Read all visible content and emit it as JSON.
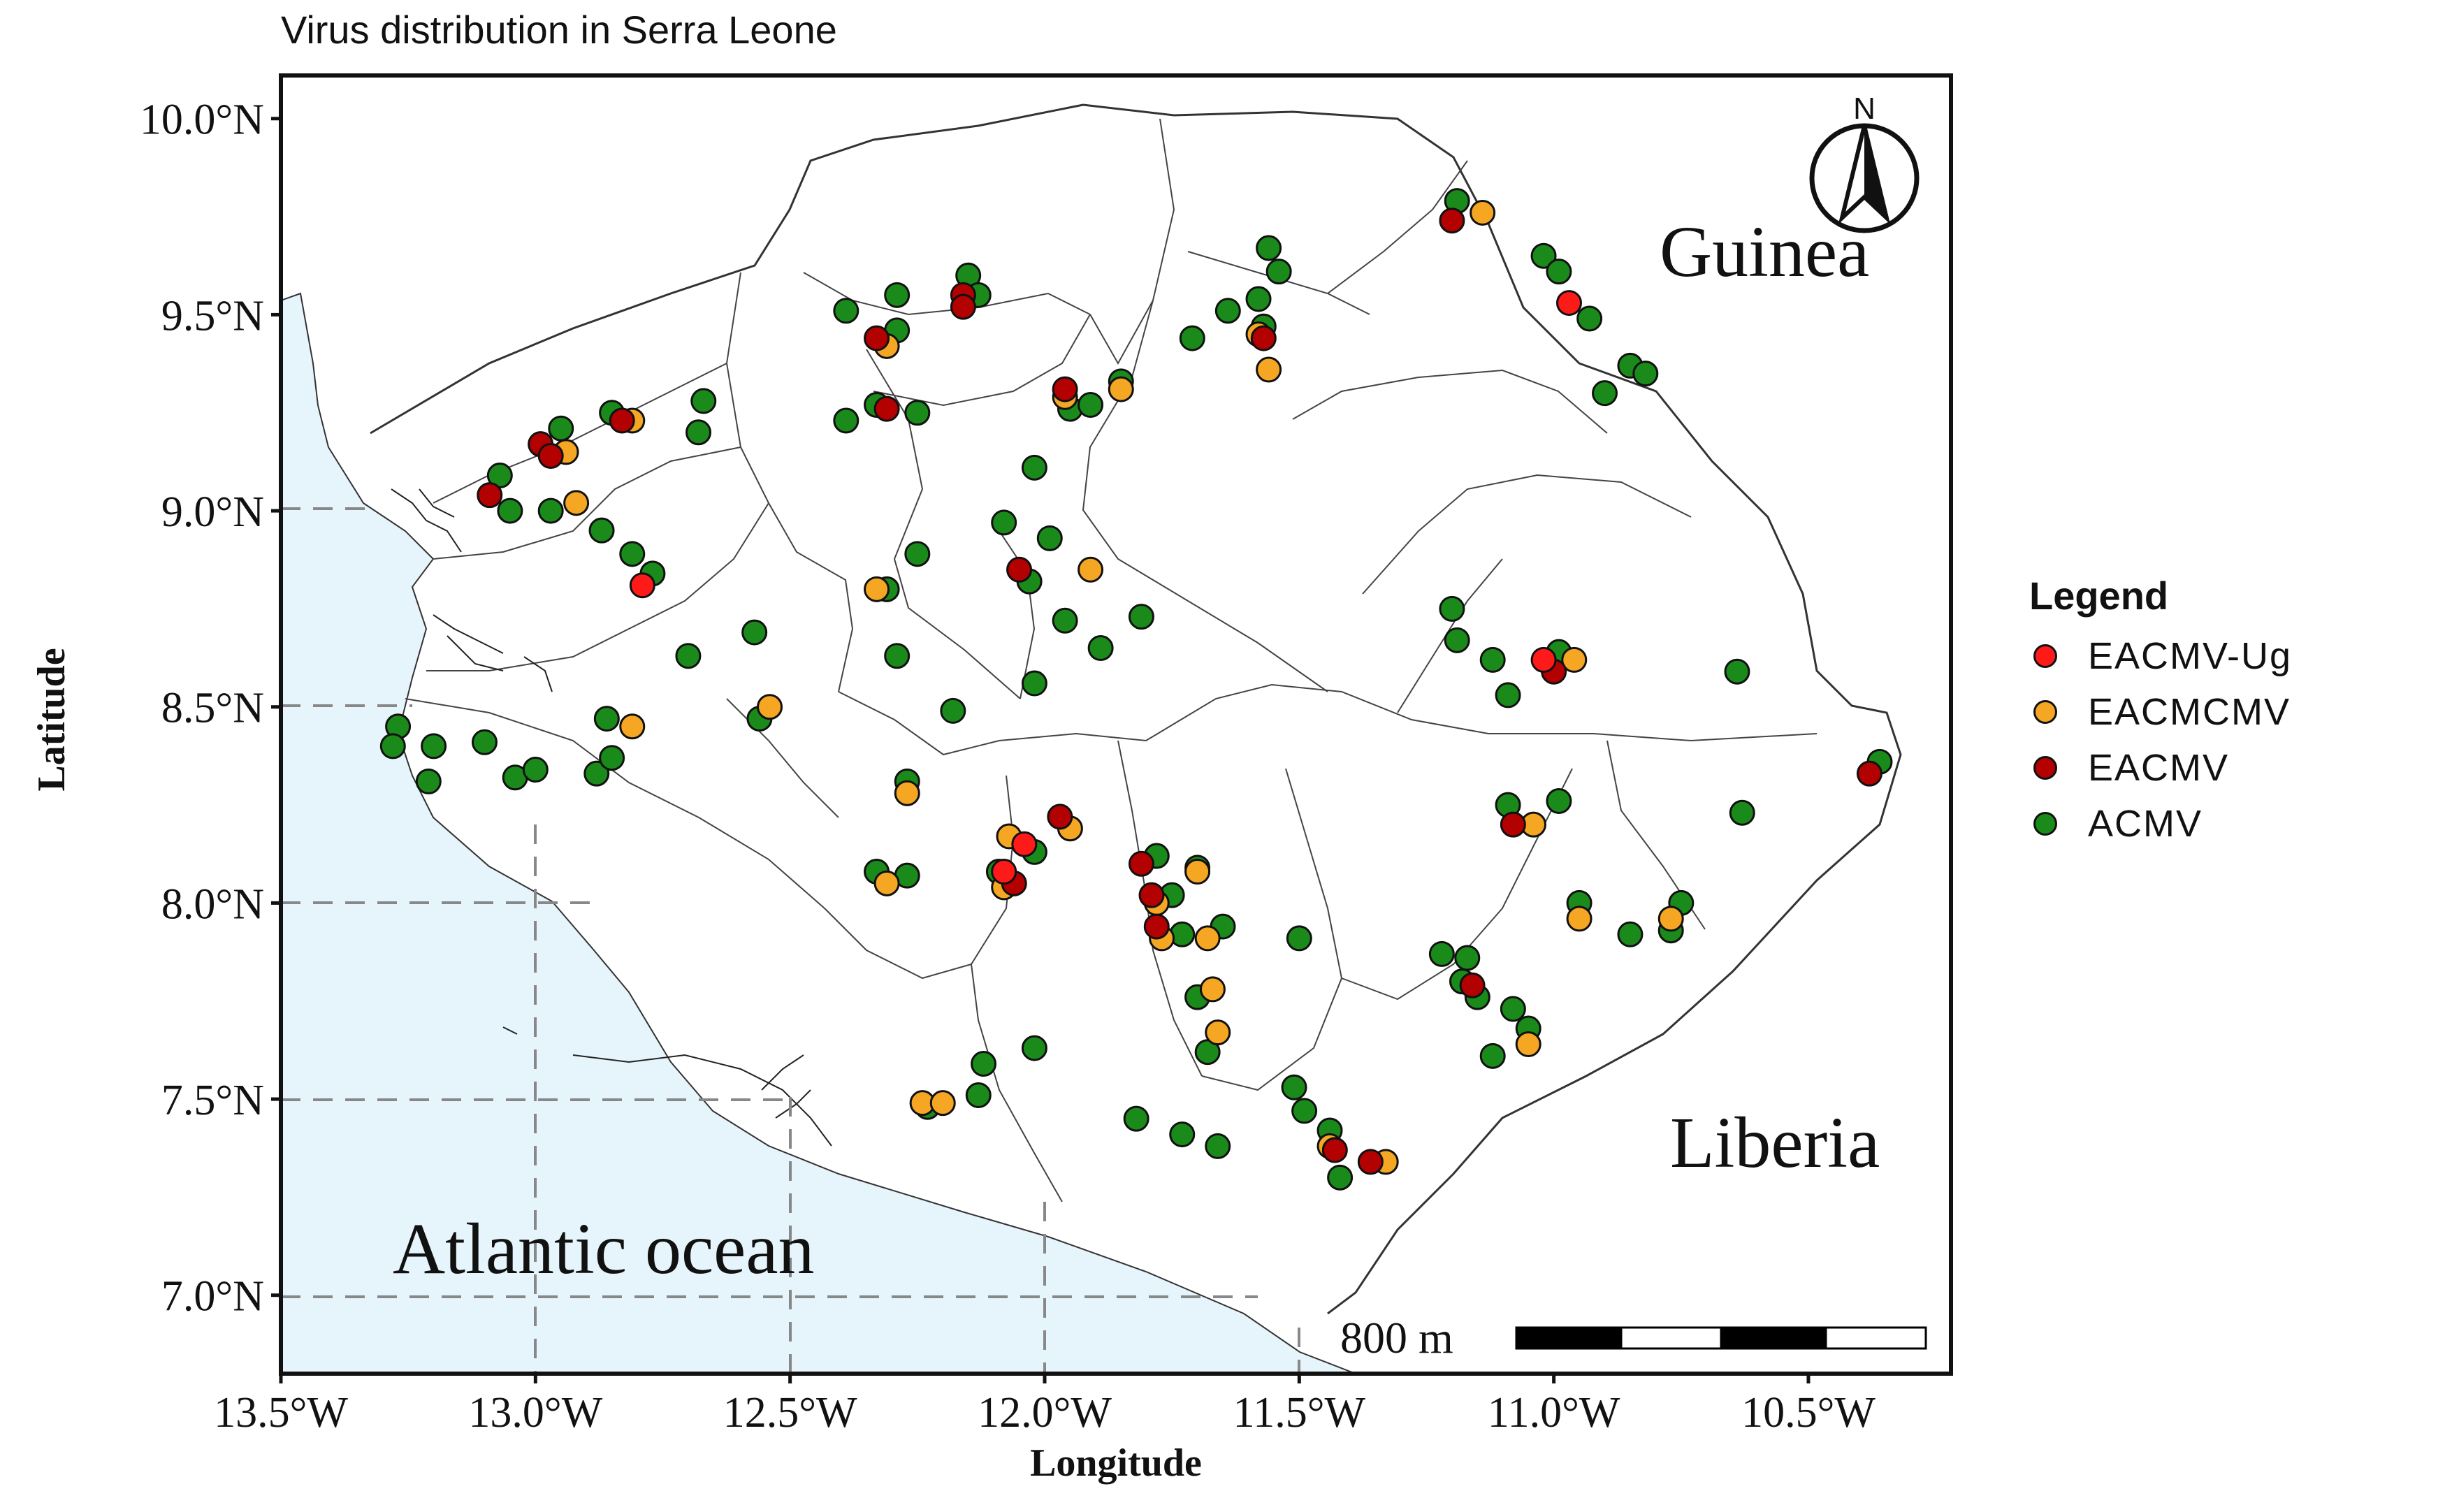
{
  "title": "Virus distribution in Serra Leone",
  "axes": {
    "xlabel": "Longitude",
    "ylabel": "Latitude",
    "xticks": [
      {
        "value": -13.5,
        "label": "13.5°W"
      },
      {
        "value": -13.0,
        "label": "13.0°W"
      },
      {
        "value": -12.5,
        "label": "12.5°W"
      },
      {
        "value": -12.0,
        "label": "12.0°W"
      },
      {
        "value": -11.5,
        "label": "11.5°W"
      },
      {
        "value": -11.0,
        "label": "11.0°W"
      },
      {
        "value": -10.5,
        "label": "10.5°W"
      }
    ],
    "yticks": [
      {
        "value": 7.0,
        "label": "7.0°N"
      },
      {
        "value": 7.5,
        "label": "7.5°N"
      },
      {
        "value": 8.0,
        "label": "8.0°N"
      },
      {
        "value": 8.5,
        "label": "8.5°N"
      },
      {
        "value": 9.0,
        "label": "9.0°N"
      },
      {
        "value": 9.5,
        "label": "9.5°N"
      },
      {
        "value": 10.0,
        "label": "10.0°N"
      }
    ],
    "xlim": [
      -13.5,
      -10.22
    ],
    "ylim": [
      6.8,
      10.11
    ]
  },
  "map_labels": {
    "guinea": "Guinea",
    "liberia": "Liberia",
    "ocean": "Atlantic ocean",
    "north": "N"
  },
  "scale_bar": {
    "label": "800 m"
  },
  "legend": {
    "title": "Legend",
    "items": [
      {
        "key": "EACMV-Ug",
        "label": "EACMV-Ug",
        "color": "#ff1a1a"
      },
      {
        "key": "EACMCMV",
        "label": "EACMCMV",
        "color": "#f5a623"
      },
      {
        "key": "EACMV",
        "label": "EACMV",
        "color": "#b30000"
      },
      {
        "key": "ACMV",
        "label": "ACMV",
        "color": "#1a8a1a"
      }
    ]
  },
  "colors": {
    "ocean": "#e6f4fb",
    "land": "#ffffff",
    "border": "#333333",
    "grid": "#888888"
  },
  "chart_data": {
    "type": "scatter",
    "title": "Virus distribution in Serra Leone",
    "xlabel": "Longitude",
    "ylabel": "Latitude",
    "xlim": [
      -13.5,
      -10.22
    ],
    "ylim": [
      6.8,
      10.11
    ],
    "series": [
      {
        "name": "ACMV",
        "points": [
          [
            -13.07,
            9.09
          ],
          [
            -13.05,
            9.0
          ],
          [
            -12.97,
            9.0
          ],
          [
            -12.95,
            9.21
          ],
          [
            -12.85,
            9.25
          ],
          [
            -12.87,
            8.95
          ],
          [
            -12.81,
            8.89
          ],
          [
            -12.77,
            8.84
          ],
          [
            -12.7,
            8.63
          ],
          [
            -12.67,
            9.28
          ],
          [
            -12.68,
            9.2
          ],
          [
            -12.57,
            8.69
          ],
          [
            -12.56,
            8.47
          ],
          [
            -12.39,
            9.51
          ],
          [
            -12.39,
            9.23
          ],
          [
            -12.33,
            9.27
          ],
          [
            -12.29,
            9.55
          ],
          [
            -12.29,
            9.46
          ],
          [
            -12.25,
            9.25
          ],
          [
            -12.15,
            9.6
          ],
          [
            -12.13,
            9.55
          ],
          [
            -12.31,
            8.8
          ],
          [
            -12.29,
            8.63
          ],
          [
            -12.25,
            8.89
          ],
          [
            -12.02,
            9.11
          ],
          [
            -12.08,
            8.97
          ],
          [
            -11.99,
            8.93
          ],
          [
            -12.03,
            8.82
          ],
          [
            -11.96,
            8.72
          ],
          [
            -11.89,
            8.65
          ],
          [
            -12.02,
            8.56
          ],
          [
            -12.18,
            8.49
          ],
          [
            -11.81,
            8.73
          ],
          [
            -11.95,
            9.26
          ],
          [
            -11.91,
            9.27
          ],
          [
            -11.85,
            9.33
          ],
          [
            -11.71,
            9.44
          ],
          [
            -11.64,
            9.51
          ],
          [
            -11.58,
            9.54
          ],
          [
            -11.57,
            9.47
          ],
          [
            -11.56,
            9.67
          ],
          [
            -11.54,
            9.61
          ],
          [
            -13.27,
            8.45
          ],
          [
            -13.28,
            8.4
          ],
          [
            -13.2,
            8.4
          ],
          [
            -13.1,
            8.41
          ],
          [
            -13.21,
            8.31
          ],
          [
            -13.04,
            8.32
          ],
          [
            -13.0,
            8.34
          ],
          [
            -12.88,
            8.33
          ],
          [
            -12.85,
            8.37
          ],
          [
            -12.86,
            8.47
          ],
          [
            -12.27,
            8.31
          ],
          [
            -12.33,
            8.08
          ],
          [
            -12.27,
            8.07
          ],
          [
            -12.09,
            8.08
          ],
          [
            -12.02,
            8.13
          ],
          [
            -11.78,
            8.12
          ],
          [
            -11.7,
            8.09
          ],
          [
            -11.75,
            8.02
          ],
          [
            -11.73,
            7.92
          ],
          [
            -11.65,
            7.94
          ],
          [
            -11.7,
            7.76
          ],
          [
            -11.68,
            7.62
          ],
          [
            -11.51,
            7.53
          ],
          [
            -11.49,
            7.47
          ],
          [
            -11.44,
            7.42
          ],
          [
            -11.42,
            7.3
          ],
          [
            -11.82,
            7.45
          ],
          [
            -11.73,
            7.41
          ],
          [
            -11.66,
            7.38
          ],
          [
            -12.23,
            7.48
          ],
          [
            -12.13,
            7.51
          ],
          [
            -12.12,
            7.59
          ],
          [
            -12.02,
            7.63
          ],
          [
            -11.5,
            7.91
          ],
          [
            -11.22,
            7.87
          ],
          [
            -11.17,
            7.86
          ],
          [
            -11.18,
            7.8
          ],
          [
            -11.15,
            7.76
          ],
          [
            -11.08,
            7.73
          ],
          [
            -11.05,
            7.68
          ],
          [
            -11.12,
            7.61
          ],
          [
            -11.2,
            8.75
          ],
          [
            -11.19,
            8.67
          ],
          [
            -11.12,
            8.62
          ],
          [
            -11.09,
            8.53
          ],
          [
            -10.99,
            8.64
          ],
          [
            -11.09,
            8.25
          ],
          [
            -10.99,
            8.26
          ],
          [
            -11.19,
            9.79
          ],
          [
            -11.02,
            9.65
          ],
          [
            -10.99,
            9.61
          ],
          [
            -10.93,
            9.49
          ],
          [
            -10.9,
            9.3
          ],
          [
            -10.85,
            9.37
          ],
          [
            -10.82,
            9.35
          ],
          [
            -10.64,
            8.59
          ],
          [
            -10.63,
            8.23
          ],
          [
            -10.36,
            8.36
          ],
          [
            -10.95,
            8.0
          ],
          [
            -10.85,
            7.92
          ],
          [
            -10.77,
            7.93
          ],
          [
            -10.75,
            8.0
          ]
        ]
      },
      {
        "name": "EACMCMV",
        "points": [
          [
            -12.94,
            9.15
          ],
          [
            -12.92,
            9.02
          ],
          [
            -12.81,
            9.23
          ],
          [
            -12.81,
            8.45
          ],
          [
            -12.54,
            8.5
          ],
          [
            -12.33,
            8.8
          ],
          [
            -12.31,
            9.42
          ],
          [
            -12.07,
            8.17
          ],
          [
            -12.08,
            8.04
          ],
          [
            -11.95,
            8.19
          ],
          [
            -11.96,
            9.29
          ],
          [
            -11.91,
            8.85
          ],
          [
            -11.85,
            9.31
          ],
          [
            -11.78,
            8.0
          ],
          [
            -11.77,
            7.91
          ],
          [
            -11.7,
            8.08
          ],
          [
            -11.68,
            7.91
          ],
          [
            -11.66,
            7.67
          ],
          [
            -11.67,
            7.78
          ],
          [
            -11.56,
            9.36
          ],
          [
            -11.58,
            9.45
          ],
          [
            -12.24,
            7.49
          ],
          [
            -12.2,
            7.49
          ],
          [
            -12.27,
            8.28
          ],
          [
            -12.31,
            8.05
          ],
          [
            -11.44,
            7.38
          ],
          [
            -11.33,
            7.34
          ],
          [
            -11.14,
            9.76
          ],
          [
            -11.04,
            8.2
          ],
          [
            -11.05,
            7.64
          ],
          [
            -10.96,
            8.62
          ],
          [
            -10.95,
            7.96
          ],
          [
            -10.77,
            7.96
          ]
        ]
      },
      {
        "name": "EACMV",
        "points": [
          [
            -13.09,
            9.04
          ],
          [
            -12.99,
            9.17
          ],
          [
            -12.97,
            9.14
          ],
          [
            -12.83,
            9.23
          ],
          [
            -12.33,
            9.44
          ],
          [
            -12.31,
            9.26
          ],
          [
            -12.16,
            9.55
          ],
          [
            -12.16,
            9.52
          ],
          [
            -12.05,
            8.85
          ],
          [
            -11.96,
            9.31
          ],
          [
            -12.06,
            8.05
          ],
          [
            -11.97,
            8.22
          ],
          [
            -11.81,
            8.1
          ],
          [
            -11.79,
            8.02
          ],
          [
            -11.78,
            7.94
          ],
          [
            -11.57,
            9.44
          ],
          [
            -11.43,
            7.37
          ],
          [
            -11.36,
            7.34
          ],
          [
            -11.2,
            9.74
          ],
          [
            -11.16,
            7.79
          ],
          [
            -11.08,
            8.2
          ],
          [
            -11.0,
            8.59
          ],
          [
            -10.38,
            8.33
          ]
        ]
      },
      {
        "name": "EACMV-Ug",
        "points": [
          [
            -12.79,
            8.81
          ],
          [
            -12.04,
            8.15
          ],
          [
            -12.08,
            8.08
          ],
          [
            -11.02,
            8.62
          ],
          [
            -10.97,
            9.53
          ]
        ]
      }
    ]
  }
}
